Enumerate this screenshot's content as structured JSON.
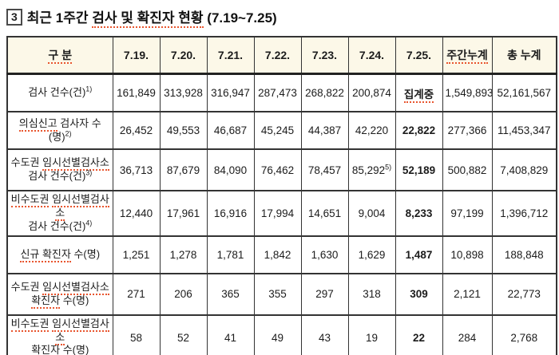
{
  "colors": {
    "header_bg": "#fcf8e8",
    "border": "#333333",
    "text": "#1c1c1c",
    "squiggle_red": "#e8552e"
  },
  "title": {
    "badge": "3",
    "lead": "최근 1주간 ",
    "underlined": "검사 및 확진자 현황",
    "period": " (7.19~7.25)"
  },
  "table": {
    "columns": [
      {
        "text": "구 분",
        "sq": true
      },
      {
        "text": "7.19."
      },
      {
        "text": "7.20."
      },
      {
        "text": "7.21."
      },
      {
        "text": "7.22."
      },
      {
        "text": "7.23."
      },
      {
        "text": "7.24."
      },
      {
        "text": "7.25."
      },
      {
        "text": "주간누계",
        "sq": true
      },
      {
        "text": "총 누계"
      }
    ],
    "rows": [
      {
        "id": "tests-total",
        "label": [
          [
            {
              "t": "검사 건수(건)",
              "u": false
            }
          ]
        ],
        "sup": "1)",
        "tall": false,
        "values": [
          "161,849",
          "313,928",
          "316,947",
          "287,473",
          "268,822",
          "200,874",
          {
            "t": "집계중",
            "bold": true,
            "sq": true
          },
          "1,549,893",
          "52,161,567"
        ]
      },
      {
        "id": "suspected-case-tested",
        "label": [
          [
            {
              "t": "의심신고",
              "u": true
            },
            {
              "t": " 검사자 수(명)",
              "u": false
            }
          ]
        ],
        "sup": "2)",
        "tall": false,
        "values": [
          "26,452",
          "49,553",
          "46,687",
          "45,245",
          "44,387",
          "42,220",
          {
            "t": "22,822",
            "bold": true
          },
          "277,366",
          "11,453,347"
        ]
      },
      {
        "id": "capital-screening-tests",
        "label": [
          [
            {
              "t": "수도권 ",
              "u": false
            },
            {
              "t": "임시선별검사소",
              "u": true
            }
          ],
          [
            {
              "t": "검사 건수(건)",
              "u": false
            }
          ]
        ],
        "sup": "3)",
        "tall": true,
        "values": [
          "36,713",
          "87,679",
          "84,090",
          "76,462",
          "78,457",
          {
            "t": "85,292",
            "sup": "5)"
          },
          {
            "t": "52,189",
            "bold": true
          },
          "500,882",
          "7,408,829"
        ]
      },
      {
        "id": "noncapital-screening-tests",
        "label": [
          [
            {
              "t": "비수도권",
              "u": true
            },
            {
              "t": " ",
              "u": false
            },
            {
              "t": "임시선별검사소",
              "u": true
            }
          ],
          [
            {
              "t": "검사 건수(건)",
              "u": false
            }
          ]
        ],
        "sup": "4)",
        "tall": true,
        "values": [
          "12,440",
          "17,961",
          "16,916",
          "17,994",
          "14,651",
          "9,004",
          {
            "t": "8,233",
            "bold": true
          },
          "97,199",
          "1,396,712"
        ]
      },
      {
        "id": "new-confirmed-cases",
        "label": [
          [
            {
              "t": "신규 확진자",
              "u": true
            },
            {
              "t": " 수(명)",
              "u": false
            }
          ]
        ],
        "sup": "",
        "tall": false,
        "values": [
          "1,251",
          "1,278",
          "1,781",
          "1,842",
          "1,630",
          "1,629",
          {
            "t": "1,487",
            "bold": true
          },
          "10,898",
          "188,848"
        ]
      },
      {
        "id": "capital-screening-confirmed",
        "label": [
          [
            {
              "t": "수도권 ",
              "u": false
            },
            {
              "t": "임시선별검사소",
              "u": true
            }
          ],
          [
            {
              "t": "확진자",
              "u": true
            },
            {
              "t": " 수(명)",
              "u": false
            }
          ]
        ],
        "sup": "",
        "tall": true,
        "values": [
          "271",
          "206",
          "365",
          "355",
          "297",
          "318",
          {
            "t": "309",
            "bold": true
          },
          "2,121",
          "22,773"
        ]
      },
      {
        "id": "noncapital-screening-confirmed",
        "label": [
          [
            {
              "t": "비수도권",
              "u": true
            },
            {
              "t": " ",
              "u": false
            },
            {
              "t": "임시선별검사소",
              "u": true
            }
          ],
          [
            {
              "t": "확진자",
              "u": true
            },
            {
              "t": " 수(명)",
              "u": false
            }
          ]
        ],
        "sup": "",
        "tall": true,
        "values": [
          "58",
          "52",
          "41",
          "49",
          "43",
          "19",
          {
            "t": "22",
            "bold": true
          },
          "284",
          "2,768"
        ]
      }
    ]
  }
}
